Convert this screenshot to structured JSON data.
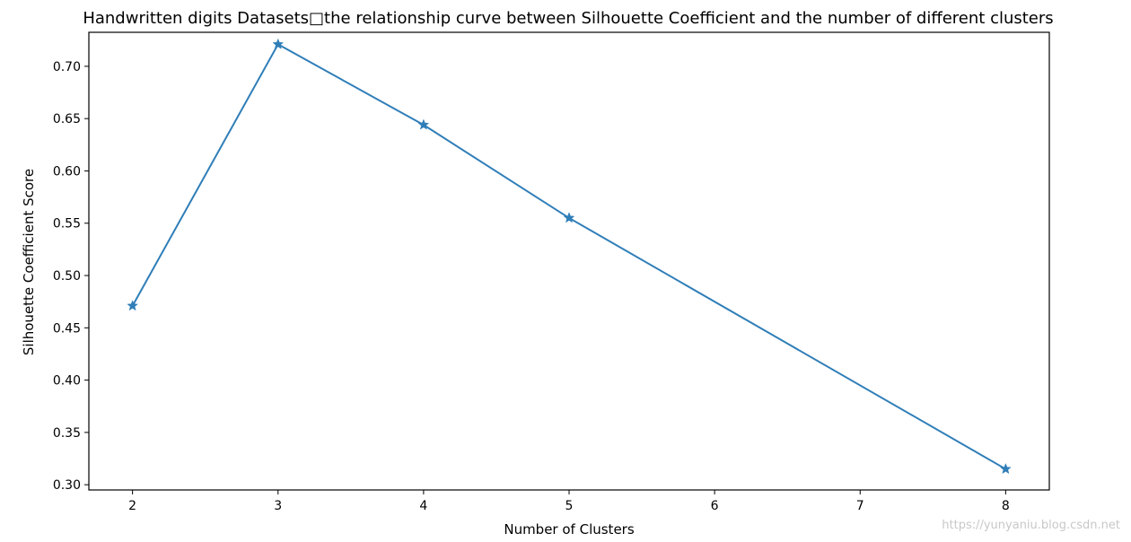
{
  "chart_data": {
    "type": "line",
    "title": "Handwritten digits Datasets□the relationship curve between Silhouette Coefficient and the number of different clusters",
    "xlabel": "Number of Clusters",
    "ylabel": "Silhouette Coefficient Score",
    "x": [
      2,
      3,
      4,
      5,
      8
    ],
    "y": [
      0.471,
      0.721,
      0.644,
      0.555,
      0.315
    ],
    "xlim": [
      1.7,
      8.3
    ],
    "ylim": [
      0.295,
      0.7325
    ],
    "xticks": [
      2,
      3,
      4,
      5,
      6,
      7,
      8
    ],
    "yticks": [
      0.3,
      0.35,
      0.4,
      0.45,
      0.5,
      0.55,
      0.6,
      0.65,
      0.7
    ],
    "ytick_labels": [
      "0.30",
      "0.35",
      "0.40",
      "0.45",
      "0.50",
      "0.55",
      "0.60",
      "0.65",
      "0.70"
    ],
    "xtick_labels": [
      "2",
      "3",
      "4",
      "5",
      "6",
      "7",
      "8"
    ],
    "line_color": "#2f7eb8",
    "marker": "star",
    "grid": false
  },
  "watermark": "https://yunyaniu.blog.csdn.net"
}
